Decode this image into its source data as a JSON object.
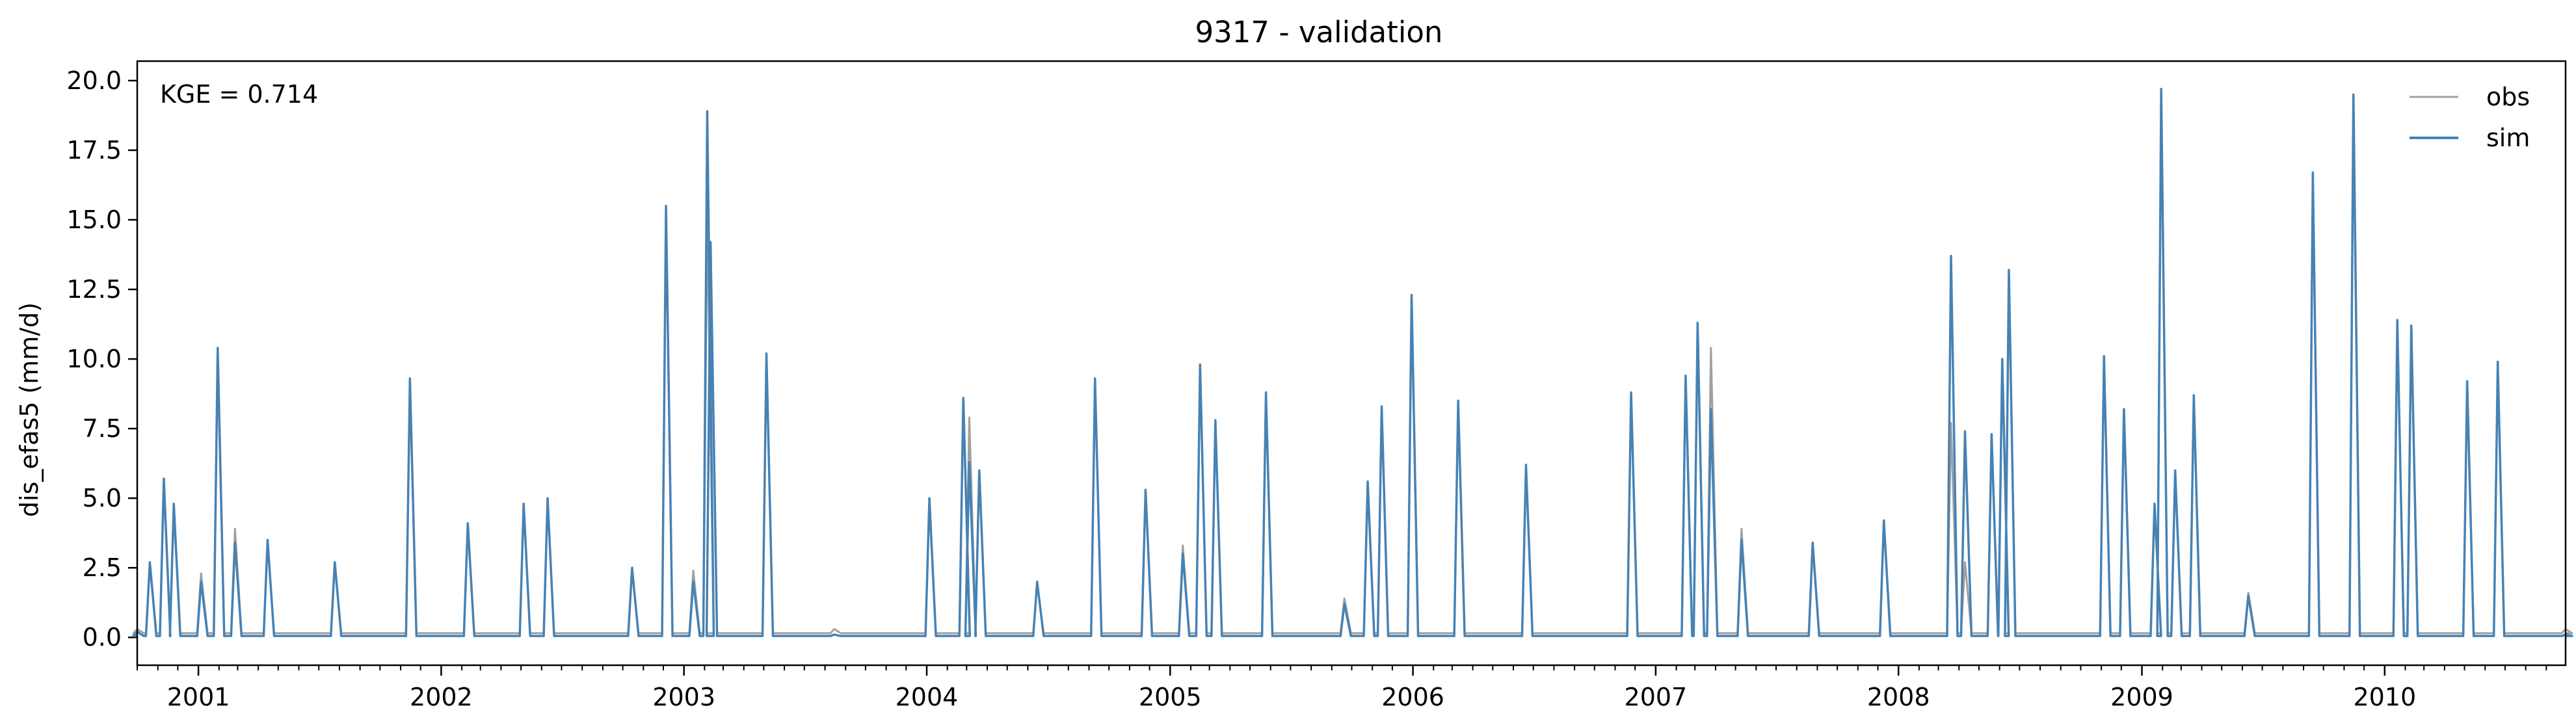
{
  "chart_data": {
    "type": "line",
    "title": "9317 - validation",
    "xlabel": "",
    "ylabel": "dis_efas5 (mm/d)",
    "annotation": "KGE = 0.714",
    "x_range": [
      "2000-10-01",
      "2010-09-30"
    ],
    "ylim": [
      -1.0,
      20.7
    ],
    "y_ticks": [
      "0.0",
      "2.5",
      "5.0",
      "7.5",
      "10.0",
      "12.5",
      "15.0",
      "17.5",
      "20.0"
    ],
    "y_tick_values": [
      0,
      2.5,
      5,
      7.5,
      10,
      12.5,
      15,
      17.5,
      20
    ],
    "x_ticks": [
      "2001",
      "2002",
      "2003",
      "2004",
      "2005",
      "2006",
      "2007",
      "2008",
      "2009",
      "2010"
    ],
    "grid": false,
    "legend_position": "top-right",
    "colors": {
      "obs": "#a0a0a0",
      "sim": "#4682b4"
    },
    "series": [
      {
        "name": "obs",
        "color": "#a0a0a0",
        "points": [
          [
            "2000-10-01",
            0.3
          ],
          [
            "2000-10-20",
            2.6
          ],
          [
            "2000-11-10",
            5.4
          ],
          [
            "2000-11-25",
            4.5
          ],
          [
            "2001-01-05",
            2.3
          ],
          [
            "2001-01-30",
            9.8
          ],
          [
            "2001-02-25",
            3.9
          ],
          [
            "2001-04-15",
            3.4
          ],
          [
            "2001-07-25",
            2.6
          ],
          [
            "2001-11-15",
            9.0
          ],
          [
            "2002-02-10",
            4.0
          ],
          [
            "2002-05-05",
            4.7
          ],
          [
            "2002-06-10",
            4.9
          ],
          [
            "2002-10-15",
            2.4
          ],
          [
            "2002-12-05",
            15.0
          ],
          [
            "2003-01-15",
            2.4
          ],
          [
            "2003-02-05",
            15.1
          ],
          [
            "2003-02-10",
            14.0
          ],
          [
            "2003-05-05",
            10.0
          ],
          [
            "2003-08-15",
            0.3
          ],
          [
            "2004-01-05",
            4.8
          ],
          [
            "2004-02-25",
            8.3
          ],
          [
            "2004-03-05",
            7.9
          ],
          [
            "2004-03-20",
            6.0
          ],
          [
            "2004-06-15",
            1.9
          ],
          [
            "2004-09-10",
            9.1
          ],
          [
            "2004-11-25",
            5.2
          ],
          [
            "2005-01-20",
            3.3
          ],
          [
            "2005-02-15",
            9.6
          ],
          [
            "2005-03-10",
            7.6
          ],
          [
            "2005-05-25",
            8.6
          ],
          [
            "2005-09-20",
            1.4
          ],
          [
            "2005-10-25",
            5.4
          ],
          [
            "2005-11-15",
            8.1
          ],
          [
            "2005-12-30",
            12.2
          ],
          [
            "2006-03-10",
            8.4
          ],
          [
            "2006-06-20",
            6.1
          ],
          [
            "2006-11-25",
            8.7
          ],
          [
            "2007-02-15",
            9.2
          ],
          [
            "2007-03-05",
            11.1
          ],
          [
            "2007-03-25",
            10.4
          ],
          [
            "2007-05-10",
            3.9
          ],
          [
            "2007-08-25",
            3.3
          ],
          [
            "2007-12-10",
            4.1
          ],
          [
            "2008-03-20",
            7.7
          ],
          [
            "2008-04-10",
            2.7
          ],
          [
            "2008-05-20",
            7.2
          ],
          [
            "2008-06-05",
            9.8
          ],
          [
            "2008-06-15",
            13.1
          ],
          [
            "2008-11-05",
            9.9
          ],
          [
            "2008-12-05",
            8.1
          ],
          [
            "2009-01-20",
            4.6
          ],
          [
            "2009-01-30",
            19.5
          ],
          [
            "2009-02-20",
            5.8
          ],
          [
            "2009-03-20",
            8.6
          ],
          [
            "2009-06-10",
            1.6
          ],
          [
            "2009-09-15",
            16.5
          ],
          [
            "2009-11-15",
            19.3
          ],
          [
            "2010-01-20",
            11.2
          ],
          [
            "2010-02-10",
            11.1
          ],
          [
            "2010-05-05",
            9.1
          ],
          [
            "2010-06-20",
            9.7
          ],
          [
            "2010-09-30",
            0.3
          ]
        ]
      },
      {
        "name": "sim",
        "color": "#4682b4",
        "points": [
          [
            "2000-10-01",
            0.2
          ],
          [
            "2000-10-20",
            2.7
          ],
          [
            "2000-11-10",
            5.7
          ],
          [
            "2000-11-25",
            4.8
          ],
          [
            "2001-01-05",
            2.0
          ],
          [
            "2001-01-30",
            10.4
          ],
          [
            "2001-02-25",
            3.4
          ],
          [
            "2001-04-15",
            3.5
          ],
          [
            "2001-07-25",
            2.7
          ],
          [
            "2001-11-15",
            9.3
          ],
          [
            "2002-02-10",
            4.1
          ],
          [
            "2002-05-05",
            4.8
          ],
          [
            "2002-06-10",
            5.0
          ],
          [
            "2002-10-15",
            2.5
          ],
          [
            "2002-12-05",
            15.5
          ],
          [
            "2003-01-15",
            2.0
          ],
          [
            "2003-02-05",
            18.9
          ],
          [
            "2003-02-10",
            14.2
          ],
          [
            "2003-05-05",
            10.2
          ],
          [
            "2003-08-15",
            0.1
          ],
          [
            "2004-01-05",
            5.0
          ],
          [
            "2004-02-25",
            8.6
          ],
          [
            "2004-03-05",
            6.3
          ],
          [
            "2004-03-20",
            6.0
          ],
          [
            "2004-06-15",
            2.0
          ],
          [
            "2004-09-10",
            9.3
          ],
          [
            "2004-11-25",
            5.3
          ],
          [
            "2005-01-20",
            3.0
          ],
          [
            "2005-02-15",
            9.8
          ],
          [
            "2005-03-10",
            7.8
          ],
          [
            "2005-05-25",
            8.8
          ],
          [
            "2005-09-20",
            1.2
          ],
          [
            "2005-10-25",
            5.6
          ],
          [
            "2005-11-15",
            8.3
          ],
          [
            "2005-12-30",
            12.3
          ],
          [
            "2006-03-10",
            8.5
          ],
          [
            "2006-06-20",
            6.2
          ],
          [
            "2006-11-25",
            8.8
          ],
          [
            "2007-02-15",
            9.4
          ],
          [
            "2007-03-05",
            11.3
          ],
          [
            "2007-03-25",
            8.2
          ],
          [
            "2007-05-10",
            3.5
          ],
          [
            "2007-08-25",
            3.4
          ],
          [
            "2007-12-10",
            4.2
          ],
          [
            "2008-03-20",
            13.7
          ],
          [
            "2008-04-10",
            7.4
          ],
          [
            "2008-05-20",
            7.3
          ],
          [
            "2008-06-05",
            10.0
          ],
          [
            "2008-06-15",
            13.2
          ],
          [
            "2008-11-05",
            10.1
          ],
          [
            "2008-12-05",
            8.2
          ],
          [
            "2009-01-20",
            4.8
          ],
          [
            "2009-01-30",
            19.7
          ],
          [
            "2009-02-20",
            6.0
          ],
          [
            "2009-03-20",
            8.7
          ],
          [
            "2009-06-10",
            1.5
          ],
          [
            "2009-09-15",
            16.7
          ],
          [
            "2009-11-15",
            19.5
          ],
          [
            "2010-01-20",
            11.4
          ],
          [
            "2010-02-10",
            11.2
          ],
          [
            "2010-05-05",
            9.2
          ],
          [
            "2010-06-20",
            9.9
          ],
          [
            "2010-09-30",
            0.1
          ]
        ]
      }
    ]
  }
}
